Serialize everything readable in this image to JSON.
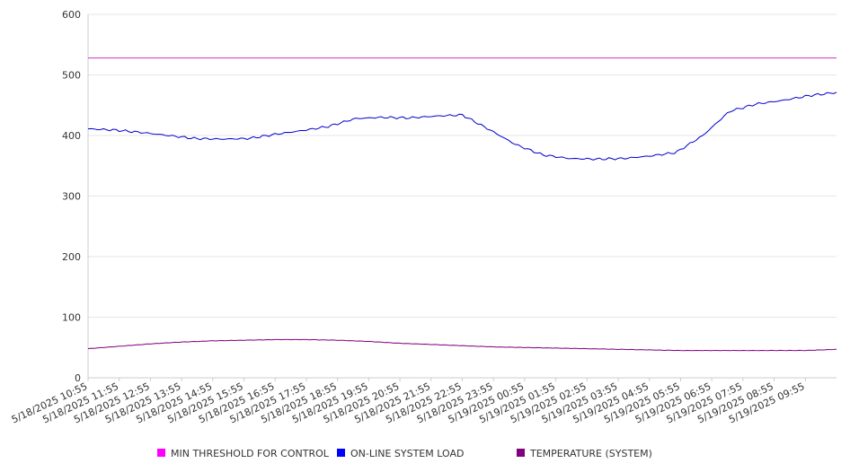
{
  "chart_data": {
    "type": "line",
    "title": "",
    "xlabel": "",
    "ylabel": "",
    "ylim": [
      0,
      600
    ],
    "y_ticks": [
      "0",
      "100",
      "200",
      "300",
      "400",
      "500",
      "600"
    ],
    "x_tick_labels": [
      "5/18/2025 10:55",
      "5/18/2025 11:55",
      "5/18/2025 12:55",
      "5/18/2025 13:55",
      "5/18/2025 14:55",
      "5/18/2025 15:55",
      "5/18/2025 16:55",
      "5/18/2025 17:55",
      "5/18/2025 18:55",
      "5/18/2025 19:55",
      "5/18/2025 20:55",
      "5/18/2025 21:55",
      "5/18/2025 22:55",
      "5/18/2025 23:55",
      "5/19/2025 00:55",
      "5/19/2025 01:55",
      "5/19/2025 02:55",
      "5/19/2025 03:55",
      "5/19/2025 04:55",
      "5/19/2025 05:55",
      "5/19/2025 06:55",
      "5/19/2025 07:55",
      "5/19/2025 08:55",
      "5/19/2025 09:55"
    ],
    "grid": "horizontal",
    "legend_position": "bottom",
    "series": [
      {
        "name": "MIN THRESHOLD FOR CONTROL",
        "color": "#cc33cc",
        "swatch": "#ff00ff",
        "values": [
          528,
          528,
          528,
          528,
          528,
          528,
          528,
          528,
          528,
          528,
          528,
          528,
          528,
          528,
          528,
          528,
          528,
          528,
          528,
          528,
          528,
          528,
          528,
          528,
          528
        ]
      },
      {
        "name": "ON-LINE SYSTEM LOAD",
        "color": "#0000cc",
        "swatch": "#0000ff",
        "values": [
          411,
          409,
          405,
          400,
          395,
          394,
          395,
          402,
          408,
          415,
          428,
          430,
          429,
          432,
          434,
          410,
          385,
          368,
          362,
          361,
          362,
          366,
          372,
          400,
          440,
          452,
          458,
          466,
          471
        ]
      },
      {
        "name": "TEMPERATURE (SYSTEM)",
        "color": "#800080",
        "swatch": "#800080",
        "values": [
          48,
          52,
          56,
          59,
          61,
          62,
          63,
          63,
          62,
          60,
          57,
          55,
          53,
          51,
          50,
          49,
          48,
          47,
          46,
          45,
          45,
          45,
          45,
          45,
          47
        ]
      }
    ]
  }
}
